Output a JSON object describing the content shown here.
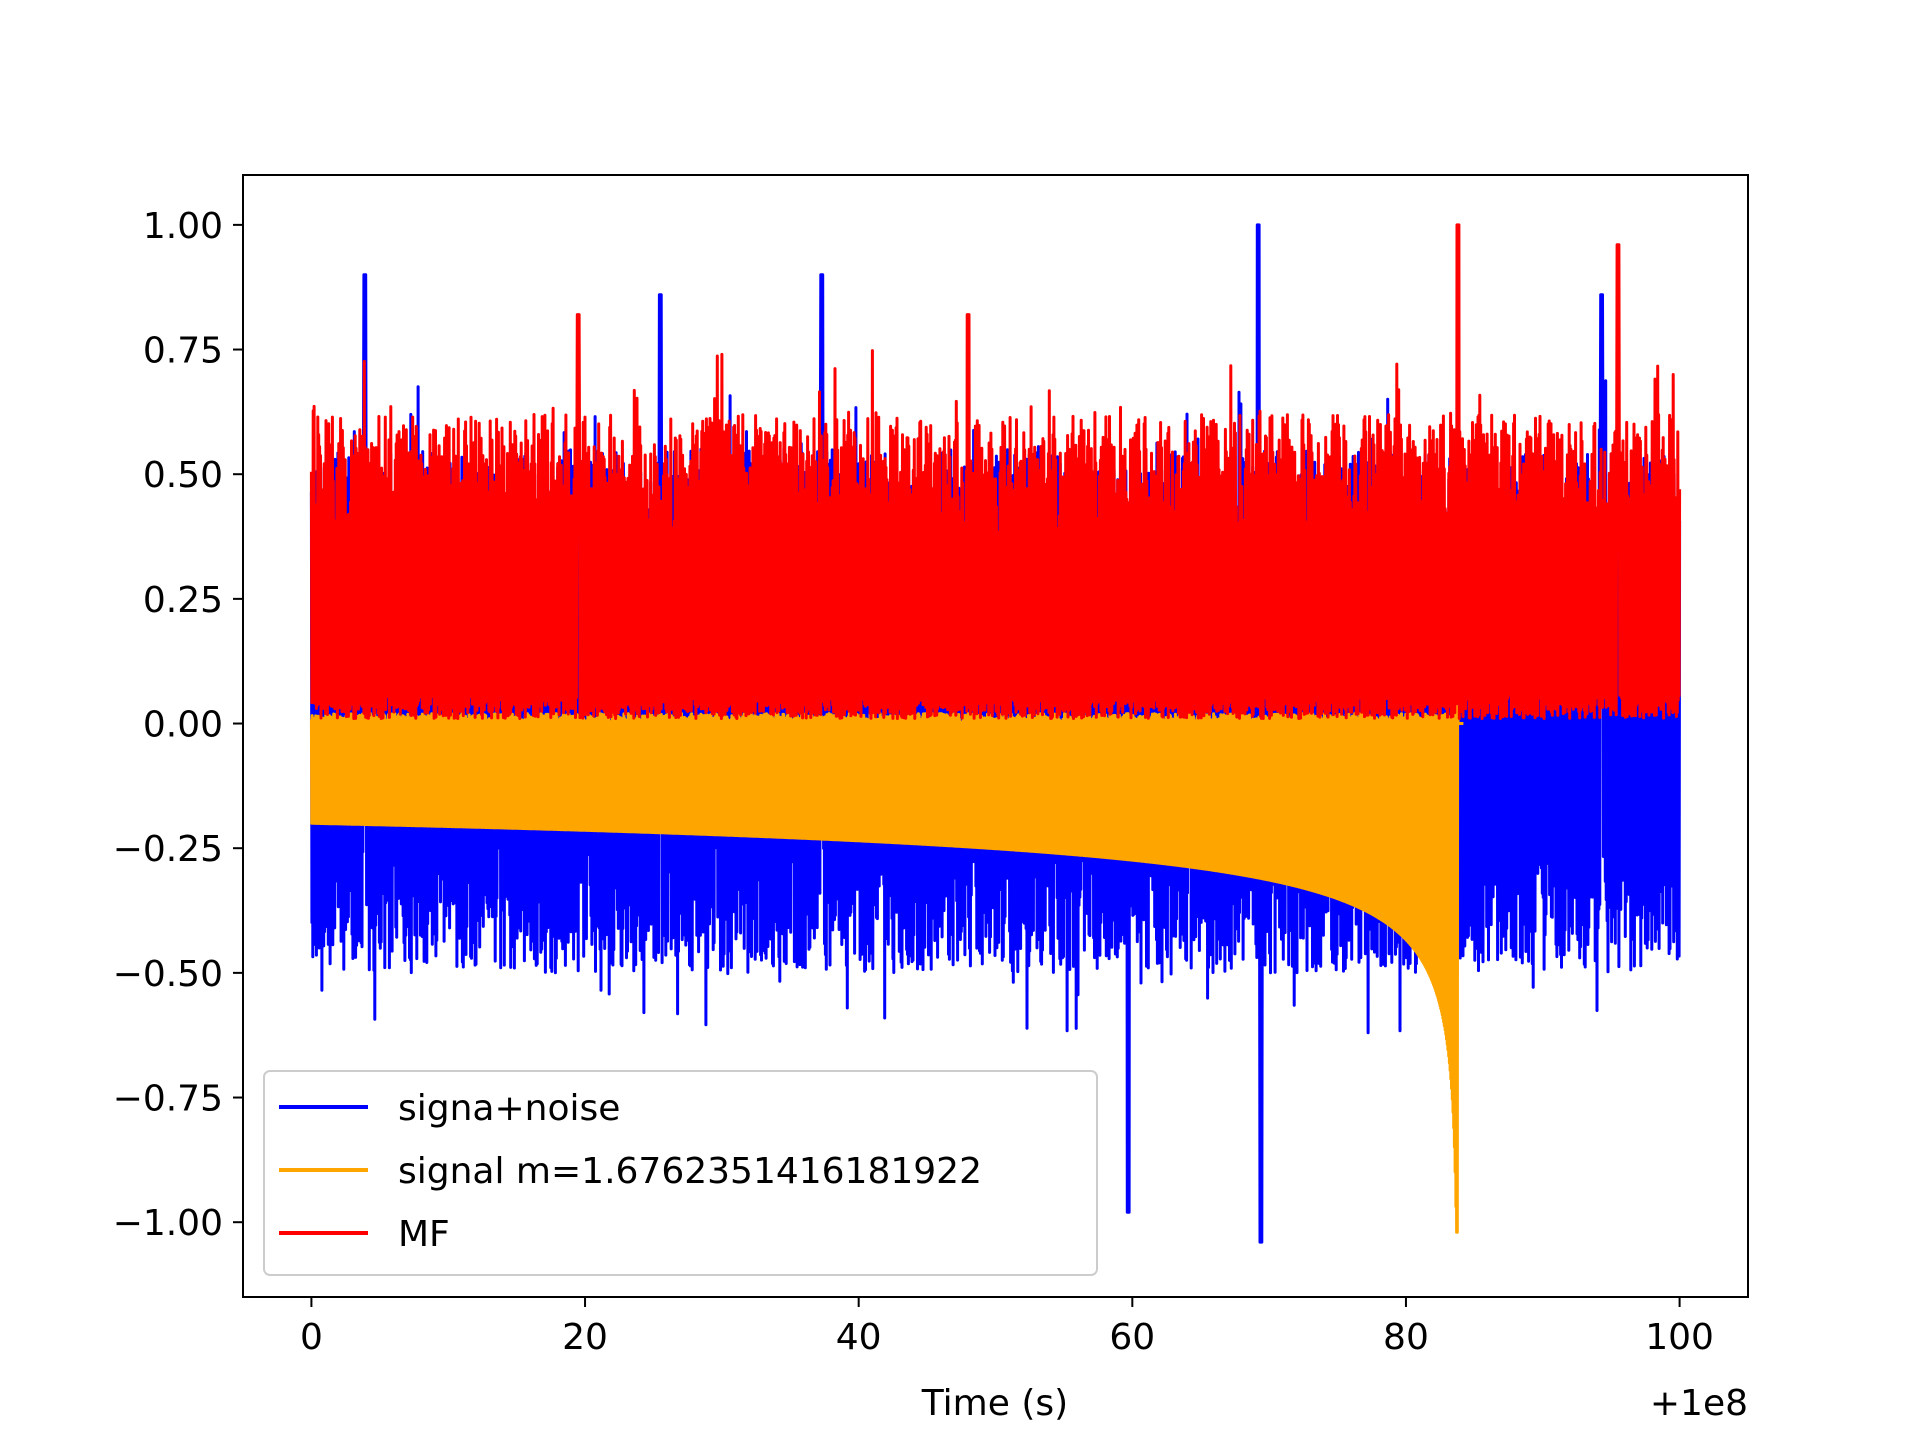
{
  "chart_data": {
    "type": "line",
    "title": "",
    "xlabel": "Time (s)",
    "ylabel": "",
    "x_offset_label": "+1e8",
    "xlim": [
      -5,
      105
    ],
    "ylim": [
      -1.15,
      1.1
    ],
    "x_ticks": [
      0,
      20,
      40,
      60,
      80,
      100
    ],
    "x_tick_labels": [
      "0",
      "20",
      "40",
      "60",
      "80",
      "100"
    ],
    "y_ticks": [
      1.0,
      0.75,
      0.5,
      0.25,
      0.0,
      -0.25,
      -0.5,
      -0.75,
      -1.0
    ],
    "y_tick_labels": [
      "1.00",
      "0.75",
      "0.50",
      "0.25",
      "0.00",
      "−0.25",
      "−0.50",
      "−0.75",
      "−1.00"
    ],
    "grid": false,
    "legend_position": "lower-left",
    "series": [
      {
        "name": "signa+noise",
        "color": "#0000ff",
        "description_shape": "dense noise band between about -0.5 and 0.55 with spikes to 1.0 and -1.05",
        "x_range": [
          0,
          100
        ],
        "approx_upper": 0.55,
        "approx_lower": -0.5,
        "peaks": [
          {
            "x": 3.9,
            "y": 0.9
          },
          {
            "x": 25.5,
            "y": 0.86
          },
          {
            "x": 37.3,
            "y": 0.9
          },
          {
            "x": 69.2,
            "y": 1.0
          },
          {
            "x": 69.4,
            "y": -1.04
          },
          {
            "x": 59.7,
            "y": -0.98
          },
          {
            "x": 94.3,
            "y": 0.86
          }
        ]
      },
      {
        "name": "signal m=1.6762351416181922",
        "color": "#ffa500",
        "description_shape": "chirp oscillation with envelope from about -0.2 growing to -1.0 at merger near x=83.8, then zero",
        "x_range": [
          0,
          84.2
        ],
        "merger_x": 83.8,
        "envelope_start": 0.2,
        "envelope_merger": 1.02
      },
      {
        "name": "MF",
        "color": "#ff0000",
        "description_shape": "dense noise band between about 0 and 0.6 with spikes to 1.0",
        "x_range": [
          0,
          100
        ],
        "approx_upper": 0.62,
        "approx_lower": 0.0,
        "peaks": [
          {
            "x": 83.8,
            "y": 1.0
          },
          {
            "x": 95.5,
            "y": 0.96
          },
          {
            "x": 19.5,
            "y": 0.82
          },
          {
            "x": 48.0,
            "y": 0.82
          }
        ]
      }
    ]
  }
}
